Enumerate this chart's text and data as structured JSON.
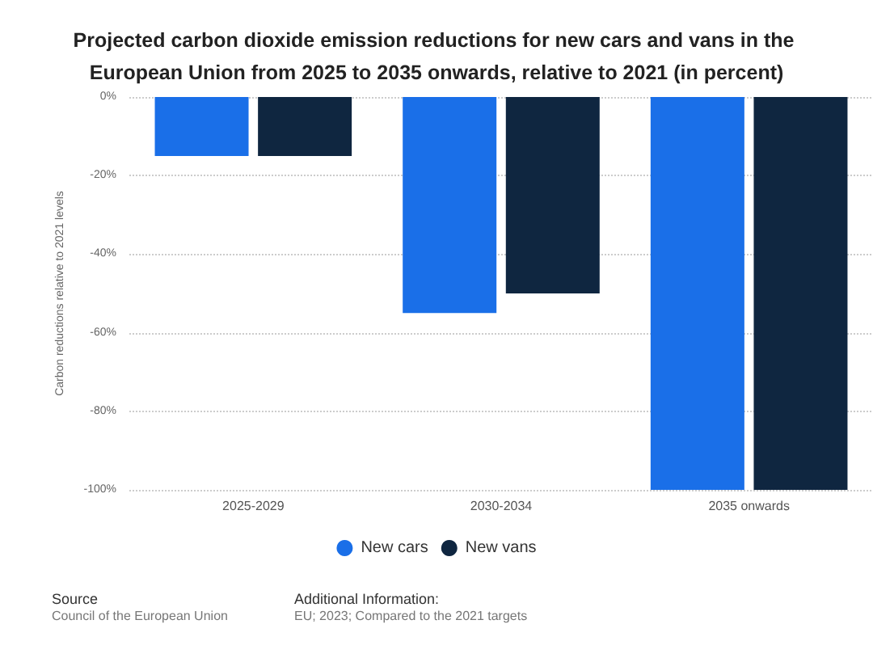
{
  "chart_data": {
    "type": "bar",
    "title": "Projected carbon dioxide emission reductions for new cars and vans in the European Union from 2025 to 2035 onwards, relative to 2021 (in percent)",
    "ylabel": "Carbon reductions relative to 2021 levels",
    "categories": [
      "2025-2029",
      "2030-2034",
      "2035 onwards"
    ],
    "series": [
      {
        "name": "New cars",
        "color": "#1a6fe8",
        "values": [
          -15,
          -55,
          -100
        ]
      },
      {
        "name": "New vans",
        "color": "#0f2640",
        "values": [
          -15,
          -50,
          -100
        ]
      }
    ],
    "ylim": [
      -100,
      0
    ],
    "yticks": [
      {
        "value": -100,
        "label": "-100%"
      },
      {
        "value": -80,
        "label": "-80%"
      },
      {
        "value": -60,
        "label": "-60%"
      },
      {
        "value": -40,
        "label": "-40%"
      },
      {
        "value": -20,
        "label": "-20%"
      },
      {
        "value": 0,
        "label": "0%"
      }
    ],
    "grid": "y",
    "legend": "bottom",
    "annotations": [
      "Source",
      "Council of the European Union",
      "Additional Information:",
      "EU; 2023; Compared to the 2021 targets"
    ]
  }
}
